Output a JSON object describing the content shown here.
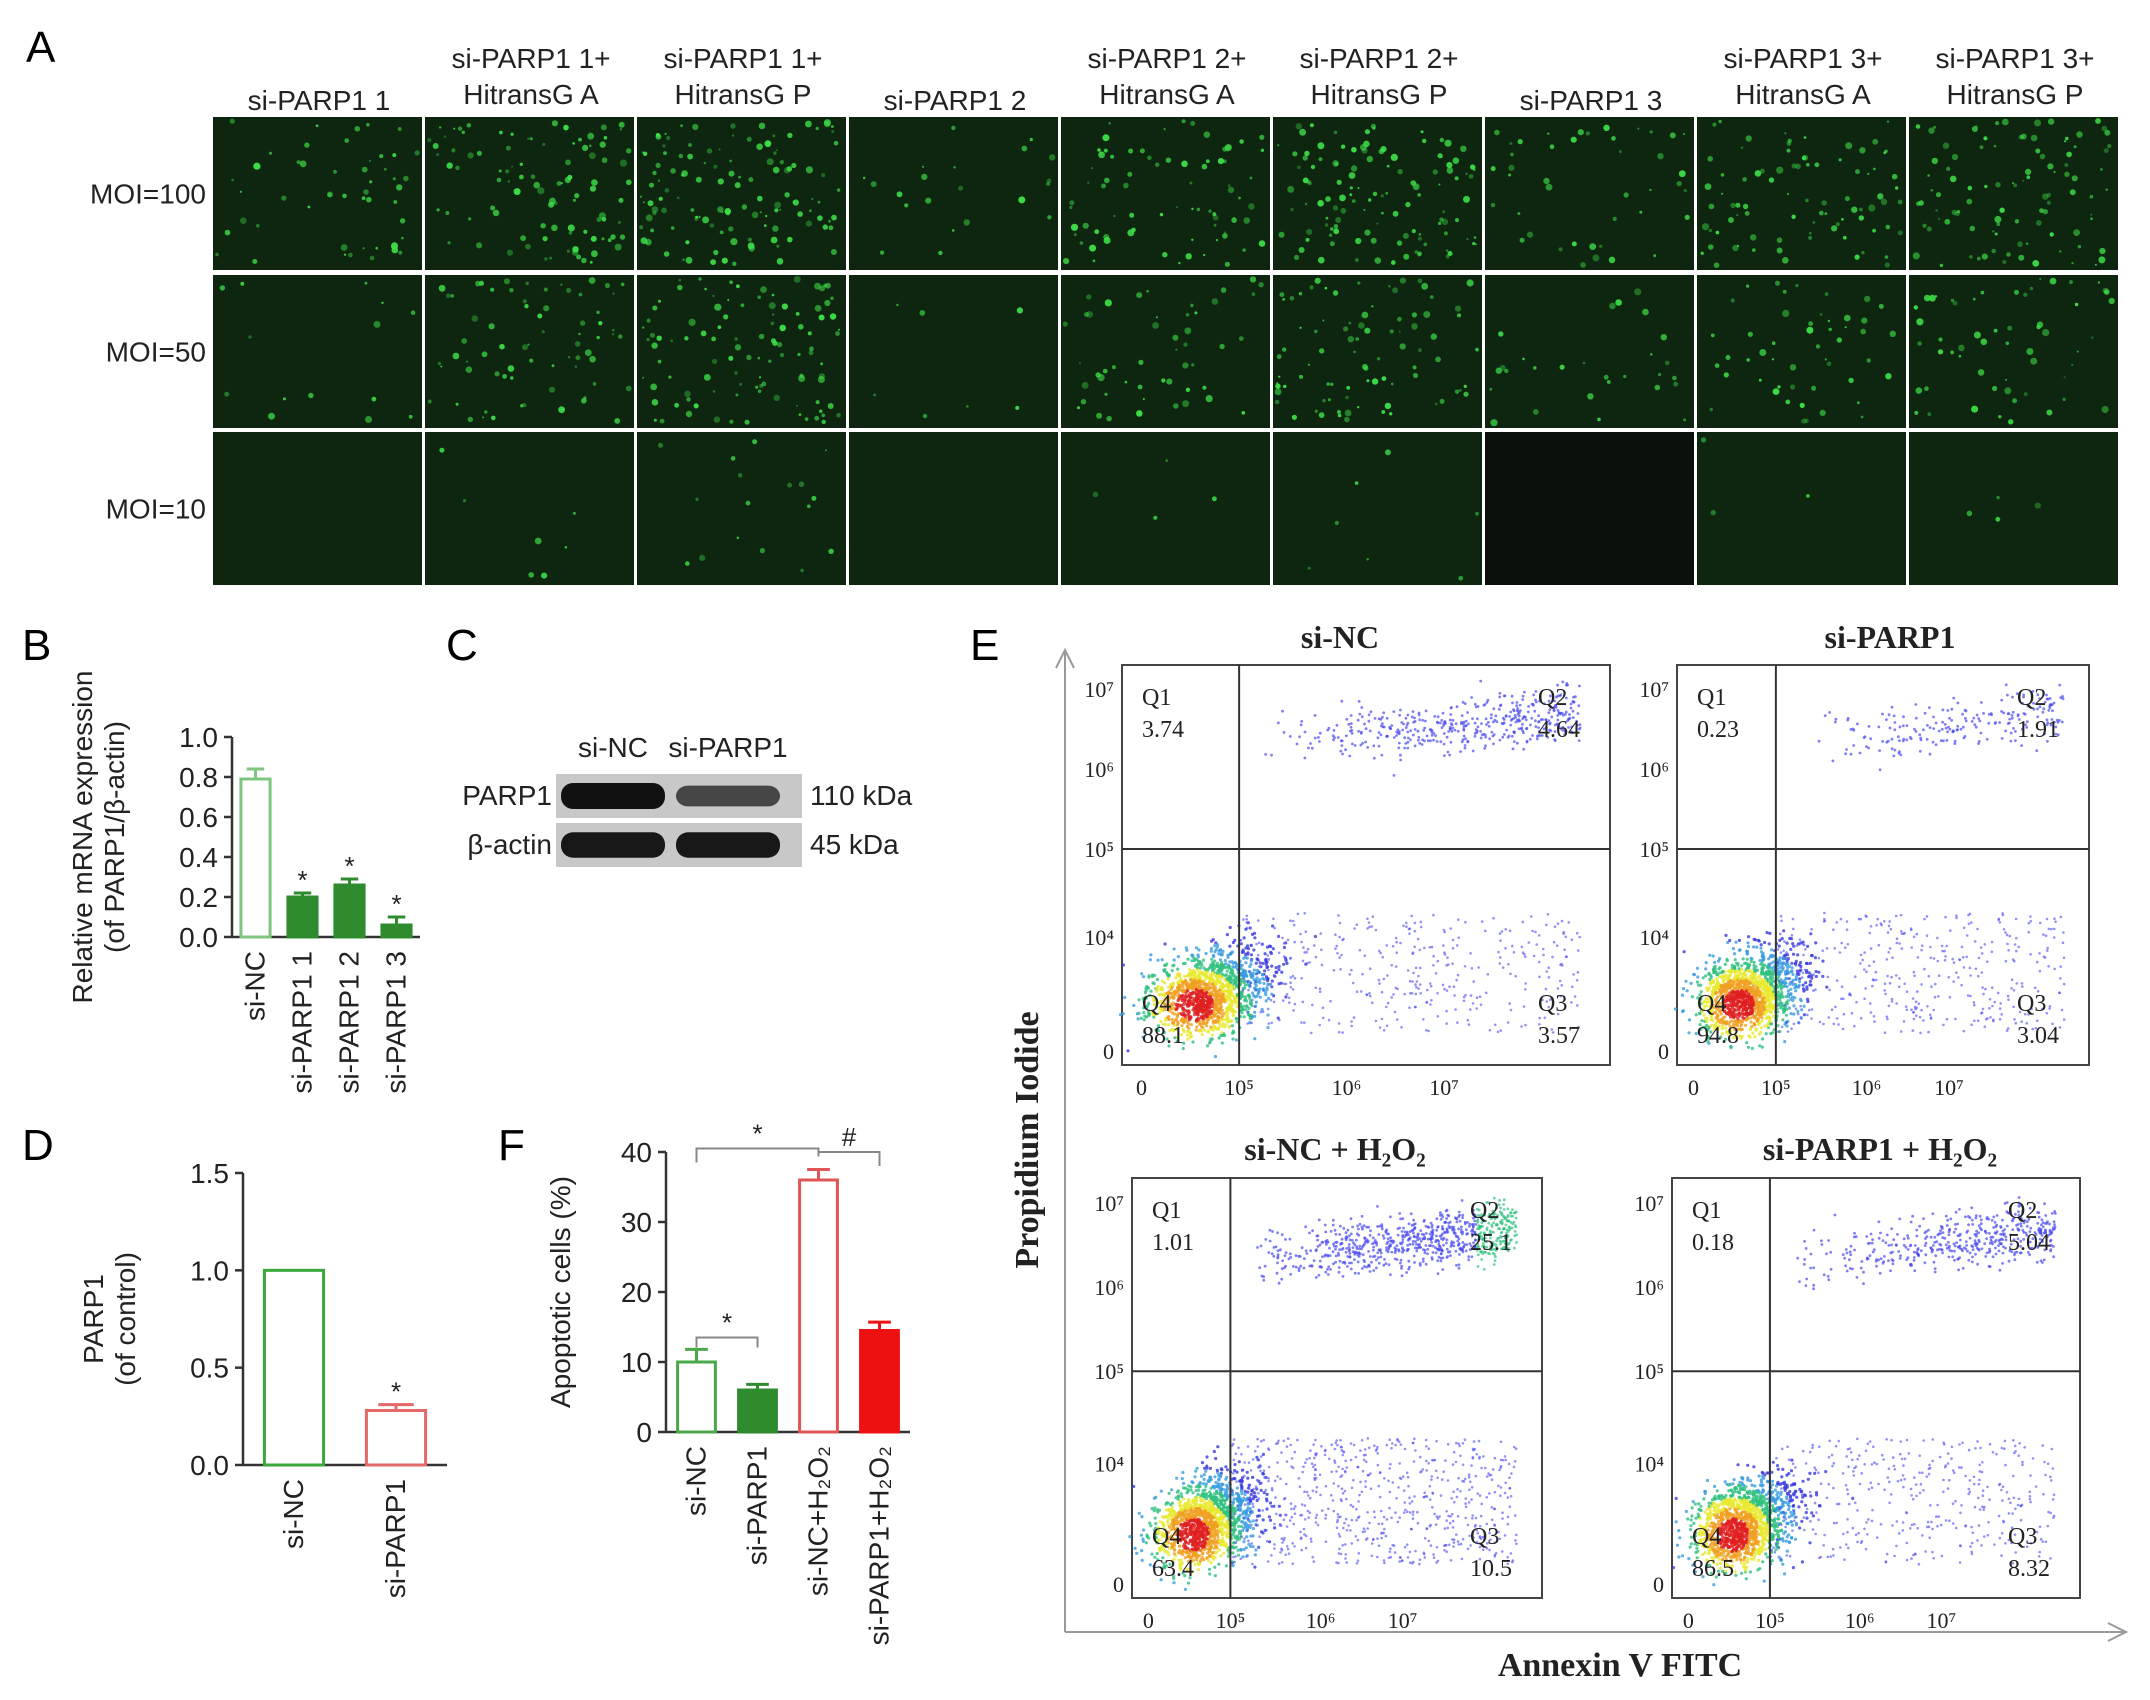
{
  "panels": {
    "A": "A",
    "B": "B",
    "C": "C",
    "D": "D",
    "E": "E",
    "F": "F"
  },
  "microscopy": {
    "columns": [
      [
        "si-PARP1 1"
      ],
      [
        "si-PARP1 1+",
        "HitransG A"
      ],
      [
        "si-PARP1 1+",
        "HitransG P"
      ],
      [
        "si-PARP1 2"
      ],
      [
        "si-PARP1 2+",
        "HitransG A"
      ],
      [
        "si-PARP1 2+",
        "HitransG P"
      ],
      [
        "si-PARP1 3"
      ],
      [
        "si-PARP1 3+",
        "HitransG A"
      ],
      [
        "si-PARP1 3+",
        "HitransG P"
      ]
    ],
    "rows": [
      "MOI=100",
      "MOI=50",
      "MOI=10"
    ],
    "fluorescence_color": "#3ee34a",
    "background_color": "#0f2a10"
  },
  "chart_data": [
    {
      "panel": "B",
      "type": "bar",
      "ylabel": [
        "Relative mRNA expression",
        "(of PARP1/β-actin)"
      ],
      "ylim": [
        0,
        1.0
      ],
      "yticks": [
        "0.0",
        "0.2",
        "0.4",
        "0.6",
        "0.8",
        "1.0"
      ],
      "categories": [
        "si-NC",
        "si-PARP1 1",
        "si-PARP1 2",
        "si-PARP1 3"
      ],
      "values": [
        0.79,
        0.2,
        0.26,
        0.06
      ],
      "errors": [
        0.05,
        0.02,
        0.03,
        0.04
      ],
      "significance": [
        "",
        "*",
        "*",
        "*"
      ],
      "colors": [
        "#ffffff",
        "#2e8b2e",
        "#2e8b2e",
        "#2e8b2e"
      ],
      "edge_colors": [
        "#7fc47f",
        "#2e8b2e",
        "#2e8b2e",
        "#2e8b2e"
      ]
    },
    {
      "panel": "D",
      "type": "bar",
      "ylabel": [
        "PARP1",
        "(of control)"
      ],
      "ylim": [
        0,
        1.5
      ],
      "yticks": [
        "0.0",
        "0.5",
        "1.0",
        "1.5"
      ],
      "categories": [
        "si-NC",
        "si-PARP1"
      ],
      "values": [
        1.0,
        0.28
      ],
      "errors": [
        0,
        0.03
      ],
      "significance": [
        "",
        "*"
      ],
      "colors": [
        "#ffffff",
        "#ffffff"
      ],
      "edge_colors": [
        "#3aa83a",
        "#e46a6a"
      ]
    },
    {
      "panel": "F",
      "type": "bar",
      "ylabel": [
        "Apoptotic cells  (%)"
      ],
      "ylim": [
        0,
        40
      ],
      "yticks": [
        "0",
        "10",
        "20",
        "30",
        "40"
      ],
      "categories": [
        "si-NC",
        "si-PARP1",
        "si-NC+H₂O₂",
        "si-PARP1+H₂O₂"
      ],
      "values": [
        10,
        6,
        36,
        14.5
      ],
      "errors": [
        1.8,
        0.8,
        1.5,
        1.2
      ],
      "significance_brackets": [
        {
          "from": 0,
          "to": 1,
          "label": "*"
        },
        {
          "from": 0,
          "to": 2,
          "label": "*"
        },
        {
          "from": 2,
          "to": 3,
          "label": "#"
        }
      ],
      "colors": [
        "#ffffff",
        "#2e8b2e",
        "#ffffff",
        "#ee1111"
      ],
      "edge_colors": [
        "#4aa84a",
        "#2e8b2e",
        "#e05555",
        "#ee1111"
      ]
    },
    {
      "panel": "E",
      "type": "scatter",
      "xlabel": "Annexin V FITC",
      "ylabel": "Propidium Iodide",
      "plots": [
        {
          "title": "si-NC",
          "q1": "3.74",
          "q2": "4.64",
          "q3": "3.57",
          "q4": "88.1",
          "upper_density": "moderate",
          "right_density": "moderate"
        },
        {
          "title": "si-PARP1",
          "q1": "0.23",
          "q2": "1.91",
          "q3": "3.04",
          "q4": "94.8",
          "upper_density": "low",
          "right_density": "moderate"
        },
        {
          "title": "si-NC + H₂O₂",
          "q1": "1.01",
          "q2": "25.1",
          "q3": "10.5",
          "q4": "63.4",
          "upper_density": "high",
          "right_density": "high"
        },
        {
          "title": "si-PARP1 + H₂O₂",
          "q1": "0.18",
          "q2": "5.04",
          "q3": "8.32",
          "q4": "86.5",
          "upper_density": "moderate",
          "right_density": "moderate"
        }
      ],
      "x_ticks": [
        "0",
        "10⁵",
        "10⁶",
        "10⁷"
      ],
      "y_ticks": [
        "0",
        "10⁴",
        "10⁵",
        "10⁶",
        "10⁷"
      ],
      "quadrant_labels": [
        "Q1",
        "Q2",
        "Q3",
        "Q4"
      ]
    }
  ],
  "western": {
    "lanes": [
      "si-NC",
      "si-PARP1"
    ],
    "bands": [
      {
        "protein": "PARP1",
        "size": "110 kDa",
        "intensity": [
          1.0,
          0.55
        ]
      },
      {
        "protein": "β-actin",
        "size": "45 kDa",
        "intensity": [
          0.95,
          0.95
        ]
      }
    ]
  }
}
